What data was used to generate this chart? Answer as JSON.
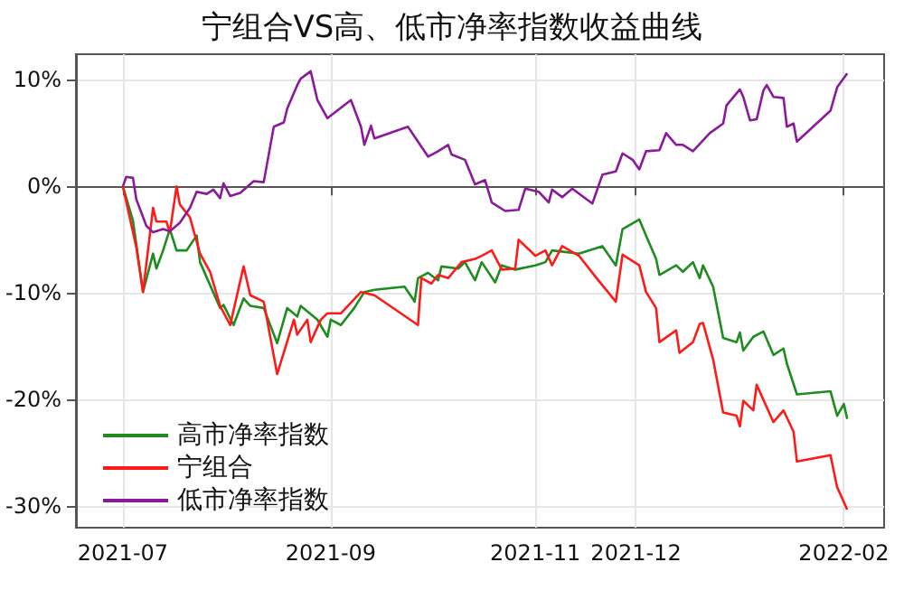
{
  "chart_data": {
    "type": "line",
    "title": "宁组合VS高、低市净率指数收益曲线",
    "series": [
      {
        "name": "高市净率指数",
        "color": "#1e8c1e",
        "x": [
          "2021-07-01",
          "2021-07-04",
          "2021-07-07",
          "2021-07-10",
          "2021-07-11",
          "2021-07-13",
          "2021-07-15",
          "2021-07-17",
          "2021-07-20",
          "2021-07-23",
          "2021-07-24",
          "2021-07-30",
          "2021-07-31",
          "2021-08-03",
          "2021-08-06",
          "2021-08-08",
          "2021-08-12",
          "2021-08-16",
          "2021-08-19",
          "2021-08-22",
          "2021-08-23",
          "2021-08-28",
          "2021-08-31",
          "2021-09-01",
          "2021-09-04",
          "2021-09-08",
          "2021-09-11",
          "2021-09-14",
          "2021-09-23",
          "2021-09-26",
          "2021-09-27",
          "2021-09-30",
          "2021-10-03",
          "2021-10-04",
          "2021-10-09",
          "2021-10-11",
          "2021-10-14",
          "2021-10-16",
          "2021-10-20",
          "2021-10-22",
          "2021-10-26",
          "2021-11-01",
          "2021-11-04",
          "2021-11-06",
          "2021-11-14",
          "2021-11-21",
          "2021-11-25",
          "2021-11-27",
          "2021-12-02",
          "2021-12-04",
          "2021-12-07",
          "2021-12-08",
          "2021-12-13",
          "2021-12-15",
          "2021-12-18",
          "2021-12-20",
          "2021-12-21",
          "2021-12-24",
          "2021-12-27",
          "2021-12-31",
          "2022-01-01",
          "2022-01-02",
          "2022-01-05",
          "2022-01-08",
          "2022-01-11",
          "2022-01-14",
          "2022-01-15",
          "2022-01-18",
          "2022-01-28",
          "2022-01-30",
          "2022-02-01",
          "2022-02-02"
        ],
        "values": [
          0,
          -3.2,
          -9.9,
          -6.3,
          -7.7,
          -6.0,
          -4.0,
          -6.0,
          -6.0,
          -4.6,
          -7.1,
          -11.4,
          -11.1,
          -13.0,
          -10.5,
          -11.2,
          -11.4,
          -14.7,
          -11.4,
          -12.2,
          -11.2,
          -12.5,
          -14.1,
          -12.5,
          -13.0,
          -11.4,
          -9.9,
          -9.7,
          -9.4,
          -10.8,
          -8.6,
          -8.1,
          -8.8,
          -7.5,
          -7.7,
          -7.1,
          -8.8,
          -7.1,
          -9.0,
          -7.4,
          -7.8,
          -7.4,
          -7.1,
          -6.0,
          -6.3,
          -5.6,
          -7.4,
          -4.0,
          -3.1,
          -4.6,
          -6.8,
          -8.3,
          -7.4,
          -8.0,
          -7.1,
          -8.6,
          -7.4,
          -9.4,
          -14.2,
          -14.6,
          -13.7,
          -15.4,
          -14.1,
          -13.6,
          -15.8,
          -15.2,
          -16.6,
          -19.5,
          -19.2,
          -21.5,
          -20.4,
          -21.8
        ]
      },
      {
        "name": "宁组合",
        "color": "#ff1a1a",
        "x": [
          "2021-07-01",
          "2021-07-05",
          "2021-07-07",
          "2021-07-10",
          "2021-07-11",
          "2021-07-14",
          "2021-07-15",
          "2021-07-17",
          "2021-07-18",
          "2021-07-21",
          "2021-07-24",
          "2021-07-27",
          "2021-07-30",
          "2021-08-02",
          "2021-08-06",
          "2021-08-08",
          "2021-08-12",
          "2021-08-16",
          "2021-08-21",
          "2021-08-22",
          "2021-08-25",
          "2021-08-26",
          "2021-08-29",
          "2021-08-31",
          "2021-09-04",
          "2021-09-10",
          "2021-09-14",
          "2021-09-27",
          "2021-09-28",
          "2021-10-01",
          "2021-10-03",
          "2021-10-06",
          "2021-10-10",
          "2021-10-14",
          "2021-10-16",
          "2021-10-19",
          "2021-10-22",
          "2021-10-26",
          "2021-10-27",
          "2021-11-01",
          "2021-11-04",
          "2021-11-06",
          "2021-11-09",
          "2021-11-14",
          "2021-11-19",
          "2021-11-25",
          "2021-11-27",
          "2021-12-02",
          "2021-12-04",
          "2021-12-07",
          "2021-12-08",
          "2021-12-13",
          "2021-12-14",
          "2021-12-18",
          "2021-12-20",
          "2021-12-21",
          "2021-12-24",
          "2021-12-27",
          "2021-12-31",
          "2022-01-01",
          "2022-01-02",
          "2022-01-05",
          "2022-01-06",
          "2022-01-11",
          "2022-01-14",
          "2022-01-17",
          "2022-01-18",
          "2022-01-28",
          "2022-01-30",
          "2022-02-02"
        ],
        "values": [
          0,
          -5.7,
          -9.9,
          -2.0,
          -3.3,
          -3.3,
          -4.3,
          0.0,
          -1.7,
          -2.9,
          -6.3,
          -8.0,
          -11.2,
          -13.0,
          -7.5,
          -10.2,
          -10.8,
          -17.6,
          -12.5,
          -13.9,
          -12.5,
          -14.6,
          -12.5,
          -11.9,
          -11.9,
          -9.9,
          -10.2,
          -13.0,
          -8.6,
          -9.1,
          -8.3,
          -8.6,
          -7.1,
          -6.8,
          -6.5,
          -6.0,
          -7.8,
          -7.7,
          -5.0,
          -6.5,
          -6.0,
          -7.4,
          -5.6,
          -6.5,
          -8.5,
          -10.8,
          -6.4,
          -7.4,
          -9.9,
          -11.4,
          -14.6,
          -13.5,
          -15.6,
          -14.6,
          -12.9,
          -12.8,
          -16.2,
          -21.2,
          -21.5,
          -22.5,
          -20.1,
          -21.0,
          -18.6,
          -22.1,
          -21.0,
          -23.0,
          -25.8,
          -25.2,
          -28.2,
          -30.3
        ]
      },
      {
        "name": "低市净率指数",
        "color": "#8b1a9b",
        "x": [
          "2021-07-01",
          "2021-07-02",
          "2021-07-04",
          "2021-07-05",
          "2021-07-08",
          "2021-07-10",
          "2021-07-13",
          "2021-07-15",
          "2021-07-18",
          "2021-07-21",
          "2021-07-23",
          "2021-07-26",
          "2021-07-28",
          "2021-07-30",
          "2021-07-31",
          "2021-08-02",
          "2021-08-05",
          "2021-08-09",
          "2021-08-12",
          "2021-08-15",
          "2021-08-18",
          "2021-08-19",
          "2021-08-22",
          "2021-08-23",
          "2021-08-26",
          "2021-08-28",
          "2021-08-31",
          "2021-09-07",
          "2021-09-10",
          "2021-09-11",
          "2021-09-13",
          "2021-09-14",
          "2021-09-24",
          "2021-09-30",
          "2021-10-03",
          "2021-10-06",
          "2021-10-07",
          "2021-10-11",
          "2021-10-14",
          "2021-10-17",
          "2021-10-19",
          "2021-10-23",
          "2021-10-27",
          "2021-10-29",
          "2021-11-02",
          "2021-11-05",
          "2021-11-06",
          "2021-11-09",
          "2021-11-12",
          "2021-11-18",
          "2021-11-21",
          "2021-11-25",
          "2021-11-27",
          "2021-11-30",
          "2021-12-02",
          "2021-12-04",
          "2021-12-08",
          "2021-12-10",
          "2021-12-13",
          "2021-12-15",
          "2021-12-18",
          "2021-12-23",
          "2021-12-27",
          "2021-12-28",
          "2022-01-01",
          "2022-01-02",
          "2022-01-04",
          "2022-01-06",
          "2022-01-08",
          "2022-01-09",
          "2022-01-11",
          "2022-01-14",
          "2022-01-15",
          "2022-01-17",
          "2022-01-18",
          "2022-01-28",
          "2022-01-30",
          "2022-02-02"
        ],
        "values": [
          0,
          0.9,
          0.8,
          -1.2,
          -3.7,
          -4.3,
          -4.0,
          -4.2,
          -3.4,
          -2.0,
          -0.5,
          -0.7,
          -0.3,
          -1.1,
          0.3,
          -0.9,
          -0.6,
          0.5,
          0.4,
          5.6,
          6.0,
          7.3,
          9.5,
          10.1,
          10.8,
          8.1,
          6.4,
          8.1,
          5.6,
          3.9,
          5.7,
          4.5,
          5.6,
          2.8,
          3.3,
          3.9,
          3.0,
          2.5,
          0.2,
          0.6,
          -1.5,
          -2.3,
          -2.2,
          -0.2,
          -0.5,
          -1.5,
          -0.3,
          -1.0,
          -0.2,
          -1.6,
          1.1,
          1.4,
          3.1,
          2.5,
          1.6,
          3.3,
          3.4,
          5.0,
          3.9,
          3.9,
          3.3,
          5.0,
          5.9,
          7.6,
          9.1,
          8.4,
          6.2,
          6.3,
          9.0,
          9.5,
          8.4,
          8.3,
          5.6,
          5.9,
          4.2,
          7.1,
          9.3,
          10.6
        ]
      }
    ],
    "xlim": [
      "2021-06-17",
      "2022-02-13"
    ],
    "xticks": [
      "2021-07",
      "2021-09",
      "2021-11",
      "2021-12",
      "2022-02"
    ],
    "ylim": [
      -32,
      12.4
    ],
    "yticks": [
      {
        "value": -30,
        "label": "-30%"
      },
      {
        "value": -20,
        "label": "-20%"
      },
      {
        "value": -10,
        "label": "-10%"
      },
      {
        "value": 0,
        "label": "0%"
      },
      {
        "value": 10,
        "label": "10%"
      }
    ],
    "grid": true,
    "legend": "bottom left",
    "marker": "none",
    "line_style": "solid"
  }
}
